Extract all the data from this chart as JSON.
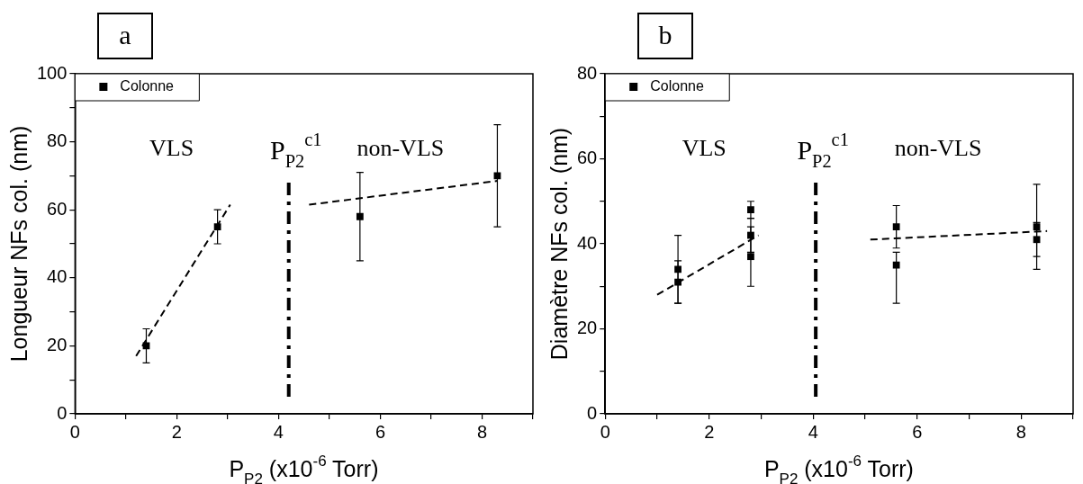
{
  "chart_data": [
    {
      "type": "scatter",
      "title": "a",
      "xlabel": "P$_{P2}$ (x10$^{-6}$ Torr)",
      "ylabel": "Longueur NFs col. (nm)",
      "xlim": [
        0,
        9
      ],
      "xticks": [
        0,
        {
          "value": 1,
          "label": null
        },
        2,
        {
          "value": 3,
          "label": null
        },
        4,
        {
          "value": 5,
          "label": null
        },
        6,
        {
          "value": 7,
          "label": null
        },
        8,
        {
          "value": 9,
          "label": null
        }
      ],
      "ylim": [
        0,
        100
      ],
      "yticks": [
        0,
        {
          "value": 10,
          "label": null
        },
        20,
        {
          "value": 30,
          "label": null
        },
        40,
        {
          "value": 50,
          "label": null
        },
        60,
        {
          "value": 70,
          "label": null
        },
        80,
        {
          "value": 90,
          "label": null
        },
        100
      ],
      "grid": false,
      "legend": "top left",
      "marker": "square",
      "series": [
        {
          "name": "Colonne",
          "type": "scatter",
          "color": "#000000",
          "x": [
            1.4,
            2.8,
            5.6,
            8.3
          ],
          "values": [
            20,
            55,
            58,
            70
          ],
          "errors": [
            5,
            5,
            13,
            15
          ]
        },
        {
          "type": "line",
          "color": "#000000",
          "line_style": "dashed",
          "marker": "none",
          "x": [
            1.2,
            3.05
          ],
          "values": [
            17,
            61.5
          ]
        },
        {
          "type": "line",
          "color": "#000000",
          "line_style": "dashed",
          "marker": "none",
          "x": [
            4.6,
            8.3
          ],
          "values": [
            61.5,
            68.5
          ]
        }
      ],
      "ref_lines": [
        {
          "axis": "x",
          "value": 4.2,
          "label": "P$_{P2}$$^{c1}$",
          "color": "#000000",
          "line_style": "dashed"
        }
      ],
      "annotations": [
        "VLS",
        "non-VLS"
      ]
    },
    {
      "type": "scatter",
      "title": "b",
      "xlabel": "P$_{P2}$ (x10$^{-6}$ Torr)",
      "ylabel": "Diamètre NFs col. (nm)",
      "xlim": [
        0,
        9
      ],
      "xticks": [
        0,
        {
          "value": 1,
          "label": null
        },
        2,
        {
          "value": 3,
          "label": null
        },
        4,
        {
          "value": 5,
          "label": null
        },
        6,
        {
          "value": 7,
          "label": null
        },
        8,
        {
          "value": 9,
          "label": null
        }
      ],
      "ylim": [
        0,
        80
      ],
      "yticks": [
        0,
        {
          "value": 10,
          "label": null
        },
        20,
        {
          "value": 30,
          "label": null
        },
        40,
        {
          "value": 50,
          "label": null
        },
        60,
        {
          "value": 70,
          "label": null
        },
        80
      ],
      "grid": false,
      "legend": "top left",
      "marker": "square",
      "series": [
        {
          "name": "Colonne",
          "type": "scatter",
          "color": "#000000",
          "x": [
            1.4,
            1.4,
            2.8,
            2.8,
            2.8,
            5.6,
            5.6,
            8.3,
            8.3
          ],
          "values": [
            34,
            31,
            48,
            42,
            37,
            44,
            35,
            44,
            41
          ],
          "errors": [
            8,
            5,
            2,
            4,
            7,
            5,
            [
              26,
              38
            ],
            10,
            4
          ]
        },
        {
          "type": "line",
          "color": "#000000",
          "line_style": "dashed",
          "marker": "none",
          "x": [
            1,
            2.95
          ],
          "values": [
            28,
            42
          ]
        },
        {
          "type": "line",
          "color": "#000000",
          "line_style": "dashed",
          "marker": "none",
          "x": [
            5.1,
            8.5
          ],
          "values": [
            41,
            43
          ]
        }
      ],
      "ref_lines": [
        {
          "axis": "x",
          "value": 4.05,
          "label": "P$_{P2}$$^{c1}$",
          "color": "#000000",
          "line_style": "dashed"
        }
      ],
      "annotations": [
        "VLS",
        "non-VLS"
      ]
    }
  ]
}
